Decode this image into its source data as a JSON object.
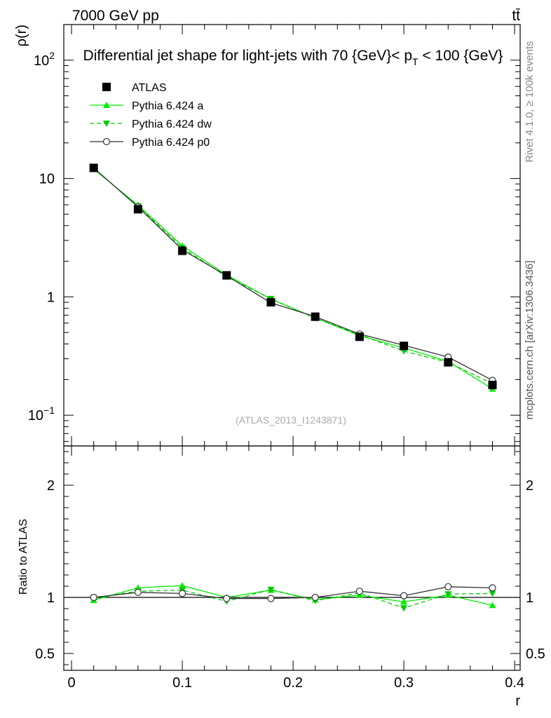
{
  "header": {
    "energy_label": "7000 GeV pp",
    "process_label": "tt̄",
    "rivet_label": "Rivet 4.1.0, ≥ 100k events",
    "mcplots_label": "mcplots.cern.ch [arXiv:1306.3436]"
  },
  "chart_data": [
    {
      "type": "line",
      "title": "Differential jet shape for light-jets with 70 {GeV}< p_T < 100 {GeV}",
      "title_parts": {
        "main": "Differential jet shape for light-jets with 70 {GeV}< p",
        "sub": "T",
        "tail": " < 100 {GeV}"
      },
      "xlabel": "r",
      "ylabel": "ρ(r)",
      "yscale": "log",
      "xlim": [
        -0.007,
        0.405
      ],
      "ylim": [
        0.055,
        200
      ],
      "watermark": "(ATLAS_2013_I1243871)",
      "y_ticks": [
        {
          "v": 0.1,
          "base": "10",
          "exp": "−1"
        },
        {
          "v": 1,
          "base": "1",
          "exp": ""
        },
        {
          "v": 10,
          "base": "10",
          "exp": ""
        },
        {
          "v": 100,
          "base": "10",
          "exp": "2"
        }
      ],
      "x": [
        0.02,
        0.06,
        0.1,
        0.14,
        0.18,
        0.22,
        0.26,
        0.3,
        0.34,
        0.38
      ],
      "series": [
        {
          "name": "ATLAS",
          "color": "#000000",
          "marker": "square",
          "line": "none",
          "values": [
            12.3,
            5.5,
            2.45,
            1.52,
            0.9,
            0.68,
            0.46,
            0.385,
            0.28,
            0.18
          ]
        },
        {
          "name": "Pythia 6.424 a",
          "color": "#00ee00",
          "marker": "triangle-up",
          "line": "solid",
          "values": [
            12.0,
            5.95,
            2.7,
            1.53,
            0.96,
            0.665,
            0.47,
            0.37,
            0.285,
            0.167
          ]
        },
        {
          "name": "Pythia 6.424 dw",
          "color": "#00cc00",
          "marker": "triangle-down",
          "line": "dashed",
          "values": [
            12.2,
            5.85,
            2.6,
            1.48,
            0.965,
            0.66,
            0.48,
            0.348,
            0.28,
            0.185
          ]
        },
        {
          "name": "Pythia 6.424 p0",
          "color": "#333333",
          "marker": "circle-open",
          "line": "solid",
          "values": [
            12.3,
            5.75,
            2.5,
            1.51,
            0.89,
            0.68,
            0.485,
            0.39,
            0.31,
            0.197
          ]
        }
      ]
    },
    {
      "type": "line",
      "title": "",
      "xlabel": "r",
      "ylabel": "Ratio to ATLAS",
      "xlim": [
        -0.007,
        0.405
      ],
      "ylim": [
        0.35,
        2.35
      ],
      "y_ticks": [
        0.5,
        1,
        2
      ],
      "x_ticks": [
        {
          "v": 0,
          "label": "0"
        },
        {
          "v": 0.1,
          "label": "0.1"
        },
        {
          "v": 0.2,
          "label": "0.2"
        },
        {
          "v": 0.3,
          "label": "0.3"
        },
        {
          "v": 0.4,
          "label": "0.4"
        }
      ],
      "x": [
        0.02,
        0.06,
        0.1,
        0.14,
        0.18,
        0.22,
        0.26,
        0.3,
        0.34,
        0.38
      ],
      "series": [
        {
          "name": "Pythia 6.424 a",
          "color": "#00ee00",
          "marker": "triangle-up",
          "line": "solid",
          "values": [
            0.975,
            1.085,
            1.105,
            1.0,
            1.065,
            0.98,
            1.02,
            0.96,
            1.02,
            0.93
          ],
          "errors": [
            0.005,
            0.01,
            0.025,
            0.01,
            0.015,
            0.01,
            0.015,
            0.02,
            0.015,
            0.025
          ]
        },
        {
          "name": "Pythia 6.424 dw",
          "color": "#00cc00",
          "marker": "triangle-down",
          "line": "dashed",
          "values": [
            0.995,
            1.055,
            1.065,
            0.965,
            1.07,
            0.97,
            1.04,
            0.905,
            1.03,
            1.035
          ],
          "errors": [
            0.005,
            0.01,
            0.025,
            0.02,
            0.02,
            0.02,
            0.02,
            0.025,
            0.02,
            0.02
          ]
        },
        {
          "name": "Pythia 6.424 p0",
          "color": "#333333",
          "marker": "circle-open",
          "line": "solid",
          "values": [
            1.0,
            1.045,
            1.035,
            0.99,
            0.99,
            1.0,
            1.055,
            1.015,
            1.095,
            1.085
          ],
          "errors": [
            0.005,
            0.01,
            0.02,
            0.015,
            0.02,
            0.015,
            0.02,
            0.025,
            0.02,
            0.025
          ]
        }
      ]
    }
  ]
}
